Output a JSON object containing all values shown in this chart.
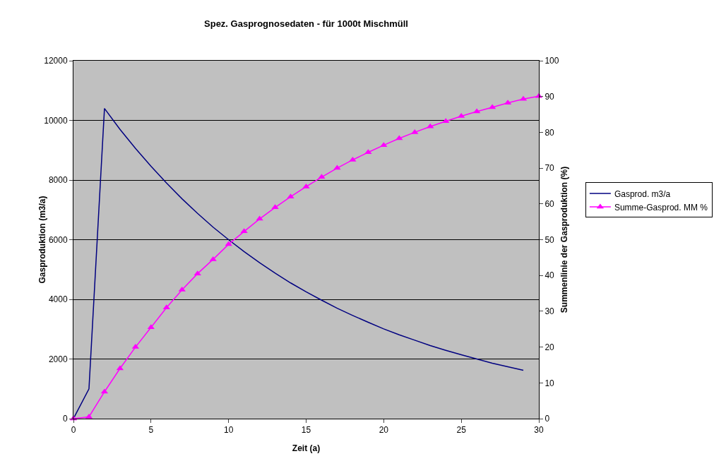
{
  "chart_data": {
    "type": "line",
    "title": "Spez. Gasprognosedaten - für 1000t Mischmüll",
    "xlabel": "Zeit (a)",
    "ylabel": "Gasproduktion (m3/a)",
    "y2label": "Summenlinie der Gasproduktion (%)",
    "xlim": [
      0,
      30
    ],
    "xticks": [
      0,
      5,
      10,
      15,
      20,
      25,
      30
    ],
    "ylim": [
      0,
      12000
    ],
    "yticks": [
      0,
      2000,
      4000,
      6000,
      8000,
      10000,
      12000
    ],
    "y2lim": [
      0,
      100
    ],
    "y2ticks": [
      0,
      10,
      20,
      30,
      40,
      50,
      60,
      70,
      80,
      90,
      100
    ],
    "grid": "y",
    "legend": "right",
    "series": [
      {
        "name": "Gasprod. m3/a",
        "color": "#000080",
        "marker": "none",
        "x": [
          0,
          1,
          2,
          3,
          4,
          5,
          6,
          7,
          8,
          9,
          10,
          11,
          12,
          13,
          14,
          15,
          16,
          17,
          18,
          19,
          20,
          21,
          22,
          23,
          24,
          25,
          26,
          27,
          28,
          29
        ],
        "values": [
          0,
          1000,
          10400,
          9700,
          9060,
          8460,
          7900,
          7370,
          6880,
          6420,
          6000,
          5600,
          5230,
          4880,
          4550,
          4250,
          3970,
          3700,
          3460,
          3230,
          3010,
          2810,
          2630,
          2450,
          2290,
          2140,
          2000,
          1860,
          1740,
          1620
        ]
      },
      {
        "name": "Summe-Gasprod. MM %",
        "color": "#ff00ff",
        "marker": "triangle",
        "axis": "y2",
        "x": [
          0,
          1,
          2,
          3,
          4,
          5,
          6,
          7,
          8,
          9,
          10,
          11,
          12,
          13,
          14,
          15,
          16,
          17,
          18,
          19,
          20,
          21,
          22,
          23,
          24,
          25,
          26,
          27,
          28,
          29,
          30
        ],
        "values": [
          0,
          0.5,
          7.5,
          14,
          20,
          25.5,
          31,
          36,
          40.5,
          44.5,
          48.7,
          52.3,
          55.8,
          59,
          62,
          64.8,
          67.5,
          70,
          72.3,
          74.4,
          76.4,
          78.3,
          80,
          81.6,
          83.1,
          84.5,
          85.8,
          87,
          88.2,
          89.3,
          90.1
        ]
      }
    ]
  }
}
